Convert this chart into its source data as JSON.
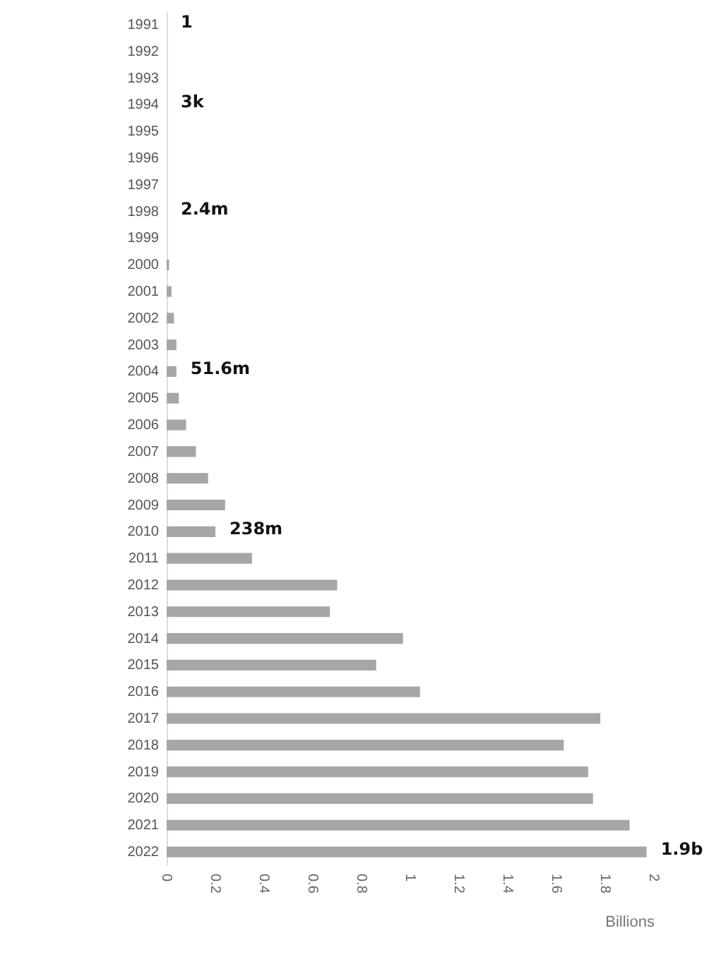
{
  "chart_data": {
    "type": "bar",
    "orientation": "horizontal",
    "xlabel": "Billions",
    "categories": [
      "1991",
      "1992",
      "1993",
      "1994",
      "1995",
      "1996",
      "1997",
      "1998",
      "1999",
      "2000",
      "2001",
      "2002",
      "2003",
      "2004",
      "2005",
      "2006",
      "2007",
      "2008",
      "2009",
      "2010",
      "2011",
      "2012",
      "2013",
      "2014",
      "2015",
      "2016",
      "2017",
      "2018",
      "2019",
      "2020",
      "2021",
      "2022"
    ],
    "values": [
      0,
      0,
      0,
      0,
      0,
      0,
      0,
      0,
      0,
      0.01,
      0.02,
      0.03,
      0.04,
      0.04,
      0.05,
      0.08,
      0.12,
      0.17,
      0.24,
      0.2,
      0.35,
      0.7,
      0.67,
      0.97,
      0.86,
      1.04,
      1.78,
      1.63,
      1.73,
      1.75,
      1.9,
      1.97
    ],
    "color": "#a6a6a6",
    "xlim": [
      0,
      2
    ],
    "xticks": [
      0,
      0.2,
      0.4,
      0.6,
      0.8,
      1,
      1.2,
      1.4,
      1.6,
      1.8,
      2
    ],
    "grid": false,
    "annotations": [
      {
        "text": "1",
        "x": 0,
        "y": "1991"
      },
      {
        "text": "3k",
        "x": 0,
        "y": "1994"
      },
      {
        "text": "2.4m",
        "x": 0,
        "y": "1998"
      },
      {
        "text": "51.6m",
        "x": 0.04,
        "y": "2004"
      },
      {
        "text": "238m",
        "x": 0.2,
        "y": "2010"
      },
      {
        "text": "1.9b",
        "x": 1.97,
        "y": "2022"
      }
    ]
  }
}
